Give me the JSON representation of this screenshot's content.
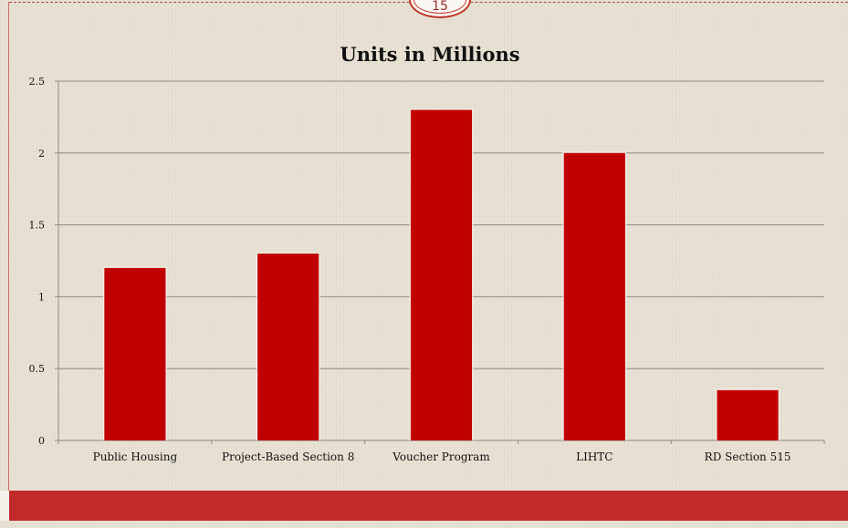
{
  "chart_data": {
    "type": "bar",
    "title": "Units in Millions",
    "categories": [
      "Public Housing",
      "Project-Based Section 8",
      "Voucher Program",
      "LIHTC",
      "RD Section 515"
    ],
    "series": [
      {
        "values": [
          1.2,
          1.3,
          2.3,
          2.0,
          0.35
        ]
      }
    ],
    "yticks": [
      "0",
      "0.5",
      "1",
      "1.5",
      "2",
      "2.5"
    ],
    "ylim": [
      0,
      2.5
    ],
    "grid": true,
    "bar_color": "#c00000"
  },
  "slide": {
    "number": "15"
  }
}
